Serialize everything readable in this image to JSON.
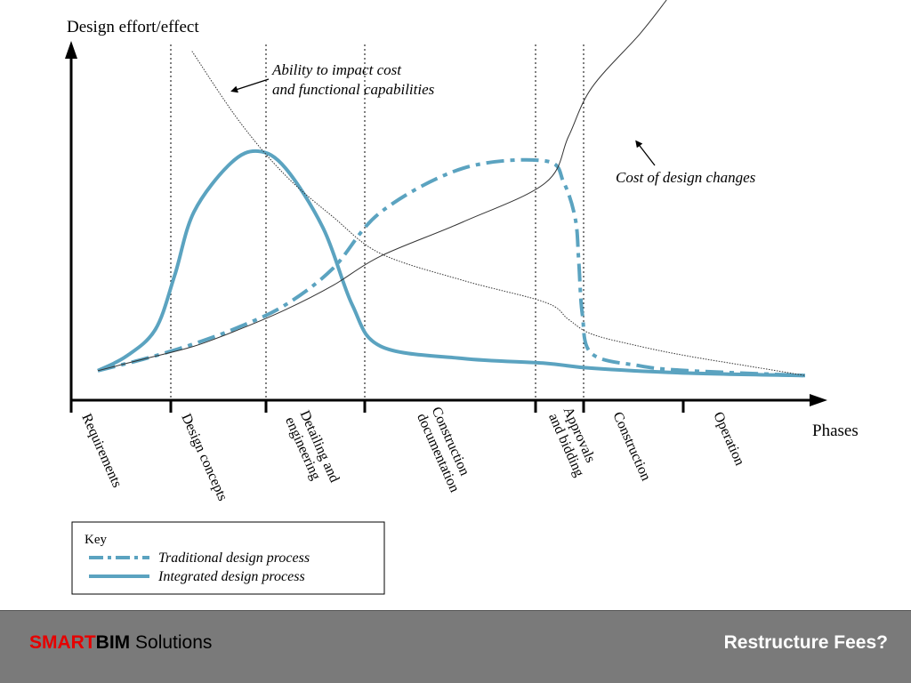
{
  "chart_data": {
    "type": "line",
    "y_axis_label": "Design effort/effect",
    "x_axis_label": "Phases",
    "phases": [
      "Requirements",
      "Design concepts",
      "Detailing and engineering",
      "Construction documentation",
      "Approvals and bidding",
      "Construction",
      "Operation"
    ],
    "series": [
      {
        "name": "Traditional design process",
        "style": "dash-dot",
        "color": "#5ba3c0",
        "points": [
          [
            0.0,
            0.03
          ],
          [
            0.5,
            0.08
          ],
          [
            1.0,
            0.14
          ],
          [
            1.5,
            0.21
          ],
          [
            2.0,
            0.3
          ],
          [
            2.5,
            0.45
          ],
          [
            3.0,
            0.68
          ],
          [
            3.5,
            0.86
          ],
          [
            4.0,
            0.89
          ],
          [
            4.4,
            0.8
          ],
          [
            4.65,
            0.65
          ],
          [
            4.72,
            0.48
          ],
          [
            4.8,
            0.26
          ],
          [
            5.0,
            0.1
          ],
          [
            5.5,
            0.05
          ],
          [
            6.0,
            0.03
          ],
          [
            7.0,
            0.01
          ]
        ]
      },
      {
        "name": "Integrated design process",
        "style": "solid",
        "color": "#5ba3c0",
        "points": [
          [
            0.0,
            0.03
          ],
          [
            0.3,
            0.09
          ],
          [
            0.6,
            0.2
          ],
          [
            0.8,
            0.42
          ],
          [
            1.0,
            0.68
          ],
          [
            1.4,
            0.88
          ],
          [
            1.7,
            0.93
          ],
          [
            2.0,
            0.86
          ],
          [
            2.4,
            0.61
          ],
          [
            2.7,
            0.3
          ],
          [
            3.0,
            0.13
          ],
          [
            3.5,
            0.08
          ],
          [
            4.0,
            0.06
          ],
          [
            5.0,
            0.04
          ],
          [
            6.0,
            0.02
          ],
          [
            7.0,
            0.01
          ]
        ]
      },
      {
        "name": "Ability to impact cost and functional capabilities",
        "style": "thin",
        "color": "#333333",
        "points": [
          [
            0.98,
            1.34
          ],
          [
            1.5,
            1.05
          ],
          [
            2.0,
            0.83
          ],
          [
            2.5,
            0.66
          ],
          [
            3.0,
            0.51
          ],
          [
            3.5,
            0.4
          ],
          [
            4.0,
            0.31
          ],
          [
            4.5,
            0.24
          ],
          [
            5.0,
            0.18
          ],
          [
            5.5,
            0.13
          ],
          [
            6.0,
            0.09
          ],
          [
            6.5,
            0.05
          ],
          [
            7.0,
            0.01
          ]
        ]
      },
      {
        "name": "Cost of design changes",
        "style": "thin",
        "color": "#333333",
        "points": [
          [
            0.0,
            0.03
          ],
          [
            0.5,
            0.08
          ],
          [
            1.0,
            0.13
          ],
          [
            1.5,
            0.2
          ],
          [
            2.0,
            0.28
          ],
          [
            2.5,
            0.38
          ],
          [
            3.0,
            0.5
          ],
          [
            3.5,
            0.64
          ],
          [
            4.0,
            0.8
          ],
          [
            4.5,
            0.99
          ],
          [
            5.0,
            1.19
          ],
          [
            5.5,
            1.41
          ],
          [
            5.78,
            1.55
          ]
        ]
      }
    ],
    "annotations": {
      "ability": "Ability to impact cost and functional capabilities",
      "cost": "Cost of design changes"
    },
    "key": {
      "title": "Key",
      "traditional": "Traditional design process",
      "integrated": "Integrated design process"
    }
  },
  "footer": {
    "brand_smart": "SMART",
    "brand_bim": "BIM",
    "brand_solutions": " Solutions",
    "title": "Restructure Fees?",
    "background": "#7a7a7a",
    "brand_accent": "#e60000"
  }
}
